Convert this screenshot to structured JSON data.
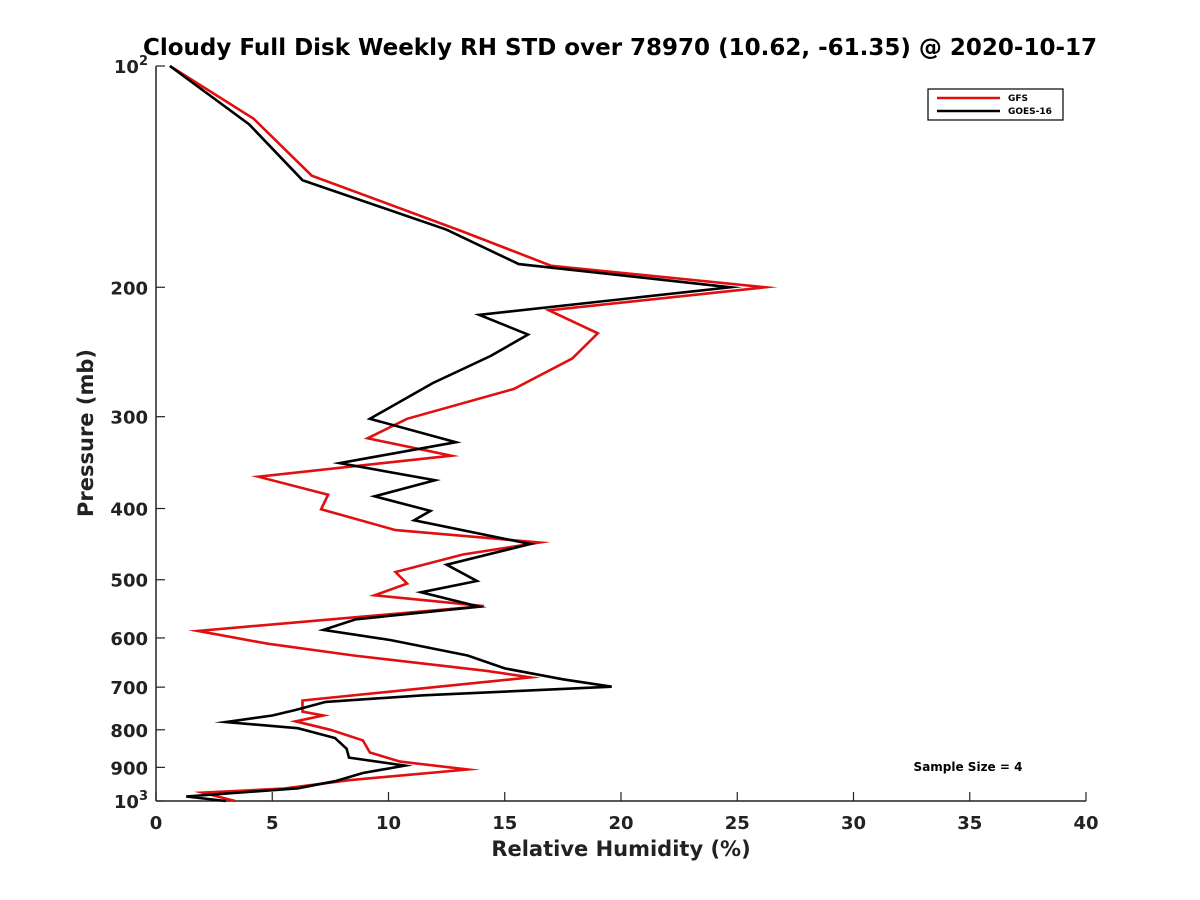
{
  "chart_data": {
    "type": "line",
    "title": "Cloudy Full Disk Weekly RH STD over 78970 (10.62, -61.35) @ 2020-10-17",
    "xlabel": "Relative Humidity (%)",
    "ylabel": "Pressure (mb)",
    "xlim": [
      0,
      40
    ],
    "ylim": [
      100,
      1000
    ],
    "y_scale": "log",
    "y_reversed": true,
    "grid": false,
    "legend_placement": "top-right",
    "x_ticks": [
      0,
      5,
      10,
      15,
      20,
      25,
      30,
      35,
      40
    ],
    "y_ticks": [
      {
        "value": 100,
        "base": "10",
        "exp": "2"
      },
      {
        "value": 200,
        "label": "200"
      },
      {
        "value": 300,
        "label": "300"
      },
      {
        "value": 400,
        "label": "400"
      },
      {
        "value": 500,
        "label": "500"
      },
      {
        "value": 600,
        "label": "600"
      },
      {
        "value": 700,
        "label": "700"
      },
      {
        "value": 800,
        "label": "800"
      },
      {
        "value": 900,
        "label": "900"
      },
      {
        "value": 1000,
        "base": "10",
        "exp": "3"
      }
    ],
    "series": [
      {
        "name": "GFS",
        "color": "#e01010",
        "points": [
          [
            0.6,
            100
          ],
          [
            4.2,
            118
          ],
          [
            6.7,
            141
          ],
          [
            13.2,
            168
          ],
          [
            17.0,
            187
          ],
          [
            26.2,
            200
          ],
          [
            16.9,
            215
          ],
          [
            19.0,
            231
          ],
          [
            17.9,
            250
          ],
          [
            15.4,
            275
          ],
          [
            10.8,
            302
          ],
          [
            9.1,
            321
          ],
          [
            12.7,
            339
          ],
          [
            4.4,
            362
          ],
          [
            7.4,
            383
          ],
          [
            7.1,
            401
          ],
          [
            10.3,
            428
          ],
          [
            16.5,
            445
          ],
          [
            13.2,
            462
          ],
          [
            10.3,
            488
          ],
          [
            10.8,
            506
          ],
          [
            9.4,
            525
          ],
          [
            14.1,
            543
          ],
          [
            1.8,
            587
          ],
          [
            4.8,
            611
          ],
          [
            8.5,
            634
          ],
          [
            14.2,
            665
          ],
          [
            16.1,
            679
          ],
          [
            6.3,
            730
          ],
          [
            6.3,
            756
          ],
          [
            7.2,
            765
          ],
          [
            6.0,
            779
          ],
          [
            7.5,
            800
          ],
          [
            8.9,
            827
          ],
          [
            9.2,
            859
          ],
          [
            10.5,
            884
          ],
          [
            13.4,
            906
          ],
          [
            8.3,
            937
          ],
          [
            5.5,
            962
          ],
          [
            2.0,
            974
          ],
          [
            3.4,
            1000
          ]
        ]
      },
      {
        "name": "GOES-16",
        "color": "#000000",
        "points": [
          [
            0.6,
            100
          ],
          [
            4.0,
            120
          ],
          [
            6.3,
            143
          ],
          [
            12.5,
            167
          ],
          [
            15.6,
            186
          ],
          [
            24.7,
            200
          ],
          [
            13.9,
            218
          ],
          [
            16.0,
            232
          ],
          [
            14.4,
            248
          ],
          [
            11.9,
            270
          ],
          [
            9.2,
            302
          ],
          [
            12.9,
            325
          ],
          [
            7.9,
            347
          ],
          [
            12.0,
            366
          ],
          [
            9.4,
            385
          ],
          [
            11.8,
            403
          ],
          [
            11.1,
            415
          ],
          [
            16.1,
            447
          ],
          [
            12.5,
            477
          ],
          [
            13.8,
            502
          ],
          [
            11.4,
            520
          ],
          [
            13.9,
            544
          ],
          [
            8.6,
            566
          ],
          [
            7.2,
            585
          ],
          [
            10.1,
            604
          ],
          [
            13.4,
            634
          ],
          [
            15.0,
            660
          ],
          [
            17.5,
            683
          ],
          [
            19.6,
            699
          ],
          [
            11.5,
            718
          ],
          [
            7.3,
            733
          ],
          [
            6.0,
            752
          ],
          [
            5.0,
            765
          ],
          [
            3.0,
            781
          ],
          [
            6.1,
            796
          ],
          [
            7.7,
            821
          ],
          [
            8.2,
            849
          ],
          [
            8.3,
            873
          ],
          [
            10.7,
            895
          ],
          [
            8.9,
            916
          ],
          [
            7.7,
            940
          ],
          [
            6.1,
            961
          ],
          [
            1.3,
            986
          ],
          [
            3.0,
            1000
          ]
        ]
      }
    ],
    "annotation": "Sample Size = 4"
  }
}
